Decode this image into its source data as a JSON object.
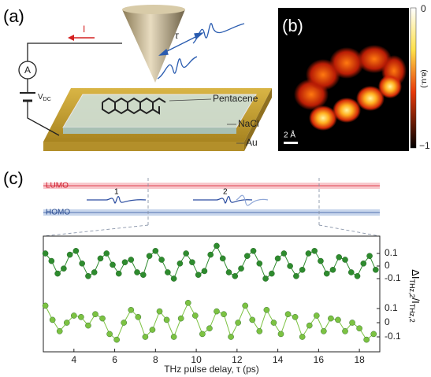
{
  "panel_a": {
    "label": "(a)",
    "current": "I",
    "ammeter": "A",
    "voltage": [
      "V",
      "DC"
    ],
    "delay": "τ",
    "layers": [
      "Pentacene",
      "NaCl",
      "Au"
    ]
  },
  "panel_b": {
    "label": "(b)",
    "scale_bar": "2 Å",
    "colorbar": {
      "max": "0",
      "min": "−1",
      "label": "(a.u.)"
    }
  },
  "panel_c": {
    "label": "(c)",
    "lumo": "LUMO",
    "homo": "HOMO",
    "pulses": [
      "1",
      "2"
    ]
  },
  "chart_data": [
    {
      "type": "line",
      "ylabel": [
        "ΔI",
        "THz,2",
        "/I",
        "THz,2"
      ],
      "x": [
        2.6,
        2.9,
        3.2,
        3.5,
        3.8,
        4.1,
        4.4,
        4.7,
        5.0,
        5.3,
        5.6,
        5.9,
        6.2,
        6.5,
        6.8,
        7.1,
        7.4,
        7.7,
        8.0,
        8.3,
        8.6,
        8.9,
        9.2,
        9.5,
        9.8,
        10.1,
        10.4,
        10.7,
        11.0,
        11.3,
        11.6,
        11.9,
        12.2,
        12.5,
        12.8,
        13.1,
        13.4,
        13.7,
        14.0,
        14.3,
        14.6,
        14.9,
        15.2,
        15.5,
        15.8,
        16.1,
        16.4,
        16.7,
        17.0,
        17.3,
        17.6,
        17.9,
        18.2,
        18.5,
        18.8
      ],
      "series": [
        {
          "color": "#2e8b2e",
          "values": [
            0.1,
            0.04,
            -0.06,
            -0.02,
            0.09,
            0.12,
            0.02,
            -0.08,
            -0.05,
            0.06,
            0.1,
            0.01,
            -0.06,
            0.03,
            0.05,
            -0.05,
            -0.07,
            0.08,
            0.12,
            0.05,
            -0.05,
            -0.1,
            0.02,
            0.1,
            0.03,
            -0.07,
            -0.04,
            0.09,
            0.16,
            0.06,
            -0.05,
            -0.08,
            -0.02,
            0.08,
            0.12,
            0.02,
            -0.1,
            -0.06,
            0.06,
            0.1,
            0.0,
            -0.08,
            -0.03,
            0.1,
            0.12,
            0.04,
            -0.06,
            -0.03,
            0.07,
            0.05,
            -0.05,
            -0.08,
            0.02,
            0.08,
            -0.03
          ]
        }
      ],
      "xlim": [
        2.5,
        19
      ],
      "ylim": [
        -0.2,
        0.2
      ],
      "yticks": [
        -0.1,
        0,
        0.1
      ]
    },
    {
      "type": "line",
      "xlabel": "THz pulse delay, τ (ps)",
      "x": [
        2.6,
        2.95,
        3.3,
        3.65,
        4.0,
        4.35,
        4.7,
        5.05,
        5.4,
        5.75,
        6.1,
        6.45,
        6.8,
        7.15,
        7.5,
        7.85,
        8.2,
        8.55,
        8.9,
        9.25,
        9.6,
        9.95,
        10.3,
        10.65,
        11.0,
        11.35,
        11.7,
        12.05,
        12.4,
        12.75,
        13.1,
        13.45,
        13.8,
        14.15,
        14.5,
        14.85,
        15.2,
        15.55,
        15.9,
        16.25,
        16.6,
        16.95,
        17.3,
        17.65,
        18.0,
        18.35,
        18.7
      ],
      "series": [
        {
          "color": "#7cc242",
          "values": [
            0.12,
            0.02,
            -0.06,
            0.0,
            0.05,
            0.04,
            -0.02,
            0.06,
            0.03,
            -0.08,
            -0.12,
            0.0,
            0.09,
            0.04,
            -0.1,
            -0.05,
            0.08,
            0.02,
            -0.1,
            0.03,
            0.14,
            0.05,
            -0.08,
            -0.04,
            0.08,
            0.06,
            -0.1,
            0.0,
            0.12,
            0.02,
            -0.06,
            0.09,
            0.0,
            -0.08,
            0.06,
            0.04,
            -0.1,
            -0.02,
            0.05,
            -0.06,
            0.03,
            0.02,
            -0.06,
            0.0,
            -0.04,
            -0.12,
            -0.08
          ]
        }
      ],
      "xlim": [
        2.5,
        19
      ],
      "ylim": [
        -0.2,
        0.2
      ],
      "yticks": [
        -0.1,
        0,
        0.1
      ],
      "xticks": [
        4,
        6,
        8,
        10,
        12,
        14,
        16,
        18
      ]
    }
  ]
}
